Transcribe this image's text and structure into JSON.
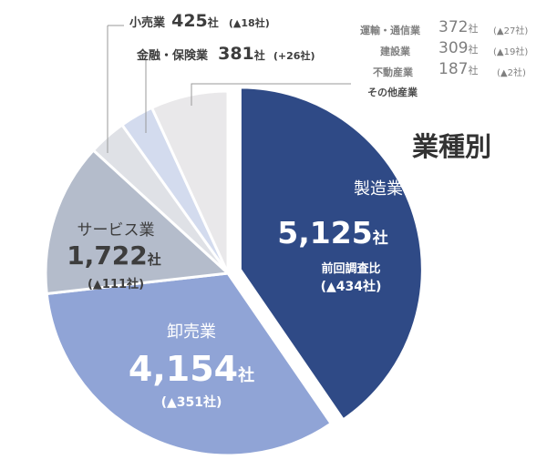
{
  "chart_data": {
    "type": "pie",
    "title": "業種別",
    "unit": "社",
    "prev_label": "前回調査比",
    "slices": [
      {
        "name": "製造業",
        "value": 5125,
        "value_text": "5,125",
        "change": "▲434社",
        "color": "#2f4a86"
      },
      {
        "name": "卸売業",
        "value": 4154,
        "value_text": "4,154",
        "change": "▲351社",
        "color": "#90a4d6"
      },
      {
        "name": "サービス業",
        "value": 1722,
        "value_text": "1,722",
        "change": "▲111社",
        "color": "#b4bccb"
      },
      {
        "name": "小売業",
        "value": 425,
        "value_text": "425",
        "change": "▲18社",
        "color": "#dfe1e6"
      },
      {
        "name": "金融・保険業",
        "value": 381,
        "value_text": "381",
        "change": "+26社",
        "color": "#d3dbee"
      },
      {
        "name": "その他産業",
        "value": 868,
        "value_text": "",
        "change": "",
        "color": "#e9e8ea"
      }
    ],
    "other_breakdown": [
      {
        "name": "運輸・通信業",
        "value": "372",
        "unit": "社",
        "change": "▲27社"
      },
      {
        "name": "建設業",
        "value": "309",
        "unit": "社",
        "change": "▲19社"
      },
      {
        "name": "不動産業",
        "value": "187",
        "unit": "社",
        "change": "▲2社"
      }
    ]
  }
}
